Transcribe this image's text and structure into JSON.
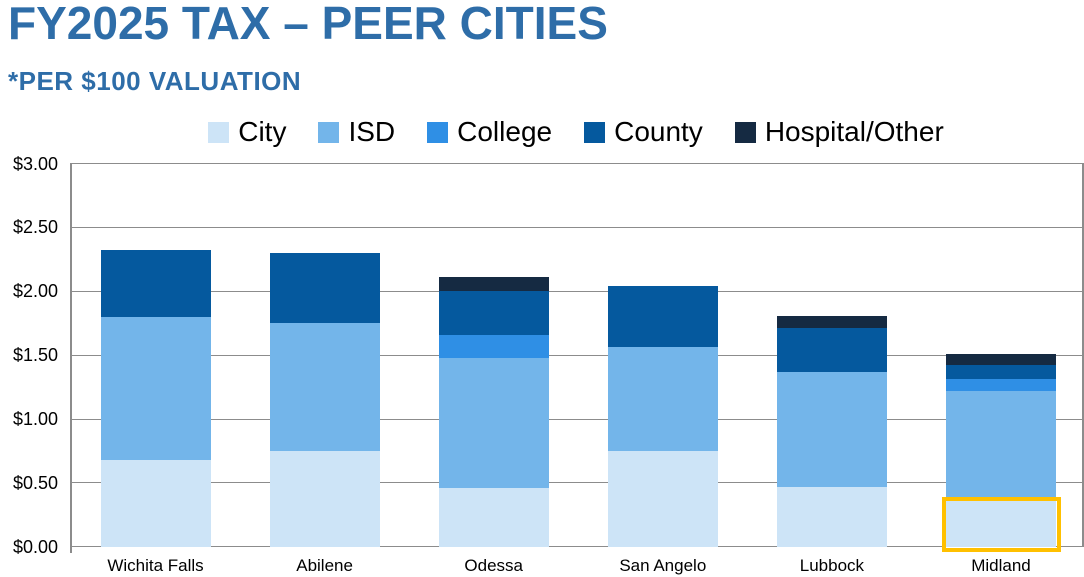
{
  "slide": {
    "title": "FY2025 TAX – PEER CITIES",
    "subtitle": "*PER $100 VALUATION"
  },
  "colors": {
    "title_text": "#2E6DA8",
    "axis_text": "#000000",
    "gridline": "#8C8C8C",
    "plot_border": "#8C8C8C",
    "highlight_box": "#FFC000",
    "background": "#FFFFFF"
  },
  "chart_data": {
    "type": "bar",
    "stacked": true,
    "title": "FY2025 TAX – PEER CITIES",
    "subtitle_note": "*PER $100 VALUATION",
    "categories": [
      "Wichita Falls",
      "Abilene",
      "Odessa",
      "San Angelo",
      "Lubbock",
      "Midland"
    ],
    "series": [
      {
        "name": "City",
        "color": "#CDE4F7",
        "values": [
          0.68,
          0.75,
          0.46,
          0.75,
          0.47,
          0.37
        ]
      },
      {
        "name": "ISD",
        "color": "#73B5EA",
        "values": [
          1.12,
          1.0,
          1.02,
          0.81,
          0.9,
          0.85
        ]
      },
      {
        "name": "College",
        "color": "#2F8FE5",
        "values": [
          0.0,
          0.0,
          0.18,
          0.0,
          0.0,
          0.09
        ]
      },
      {
        "name": "County",
        "color": "#05599E",
        "values": [
          0.52,
          0.55,
          0.34,
          0.48,
          0.34,
          0.11
        ]
      },
      {
        "name": "Hospital/Other",
        "color": "#152A42",
        "values": [
          0.0,
          0.0,
          0.11,
          0.0,
          0.1,
          0.09
        ]
      }
    ],
    "ylim": [
      0,
      3.0
    ],
    "ytick_step": 0.5,
    "ytick_labels": [
      "$3.00",
      "$2.50",
      "$2.00",
      "$1.50",
      "$1.00",
      "$0.50",
      "$0.00"
    ],
    "grid": true,
    "legend_position": "top",
    "highlight": {
      "category": "Midland",
      "series": "City",
      "box_color": "#FFC000"
    }
  }
}
